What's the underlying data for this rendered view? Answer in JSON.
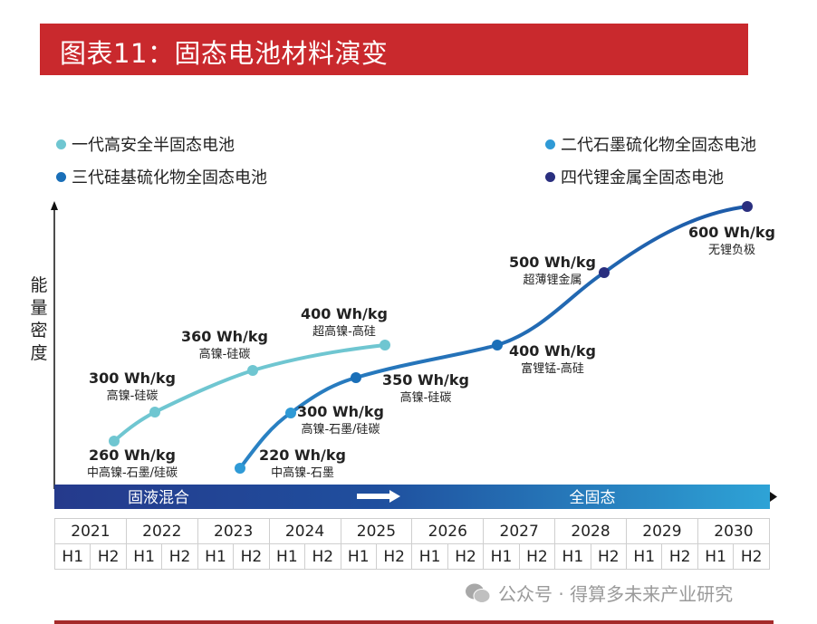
{
  "title": "图表11：固态电池材料演变",
  "y_axis_label": "能量密度",
  "legend": [
    {
      "label": "一代高安全半固态电池",
      "color": "#6fc6d1"
    },
    {
      "label": "二代石墨硫化物全固态电池",
      "color": "#2f9ad6"
    },
    {
      "label": "三代硅基硫化物全固态电池",
      "color": "#1a6fb8"
    },
    {
      "label": "四代锂金属全固态电池",
      "color": "#2a2f7f"
    }
  ],
  "phase_band": {
    "left": "固液混合",
    "right": "全固态",
    "arrow": "right-arrow"
  },
  "years": [
    "2021",
    "2022",
    "2023",
    "2024",
    "2025",
    "2026",
    "2027",
    "2028",
    "2029",
    "2030"
  ],
  "halves": [
    "H1",
    "H2"
  ],
  "gen1_points": [
    {
      "value": "260 Wh/kg",
      "material": "中高镍-石墨/硅碳"
    },
    {
      "value": "300 Wh/kg",
      "material": "高镍-硅碳"
    },
    {
      "value": "360 Wh/kg",
      "material": "高镍-硅碳"
    },
    {
      "value": "400 Wh/kg",
      "material": "超高镍-高硅"
    }
  ],
  "gen2_4_points": [
    {
      "value": "220 Wh/kg",
      "material": "中高镍-石墨",
      "generation": 2
    },
    {
      "value": "300 Wh/kg",
      "material": "高镍-石墨/硅碳",
      "generation": 2
    },
    {
      "value": "350 Wh/kg",
      "material": "高镍-硅碳",
      "generation": 3
    },
    {
      "value": "400 Wh/kg",
      "material": "富锂锰-高硅",
      "generation": 3
    },
    {
      "value": "500 Wh/kg",
      "material": "超薄锂金属",
      "generation": 4
    },
    {
      "value": "600 Wh/kg",
      "material": "无锂负极",
      "generation": 4
    }
  ],
  "watermark": "公众号 · 得算多未来产业研究"
}
